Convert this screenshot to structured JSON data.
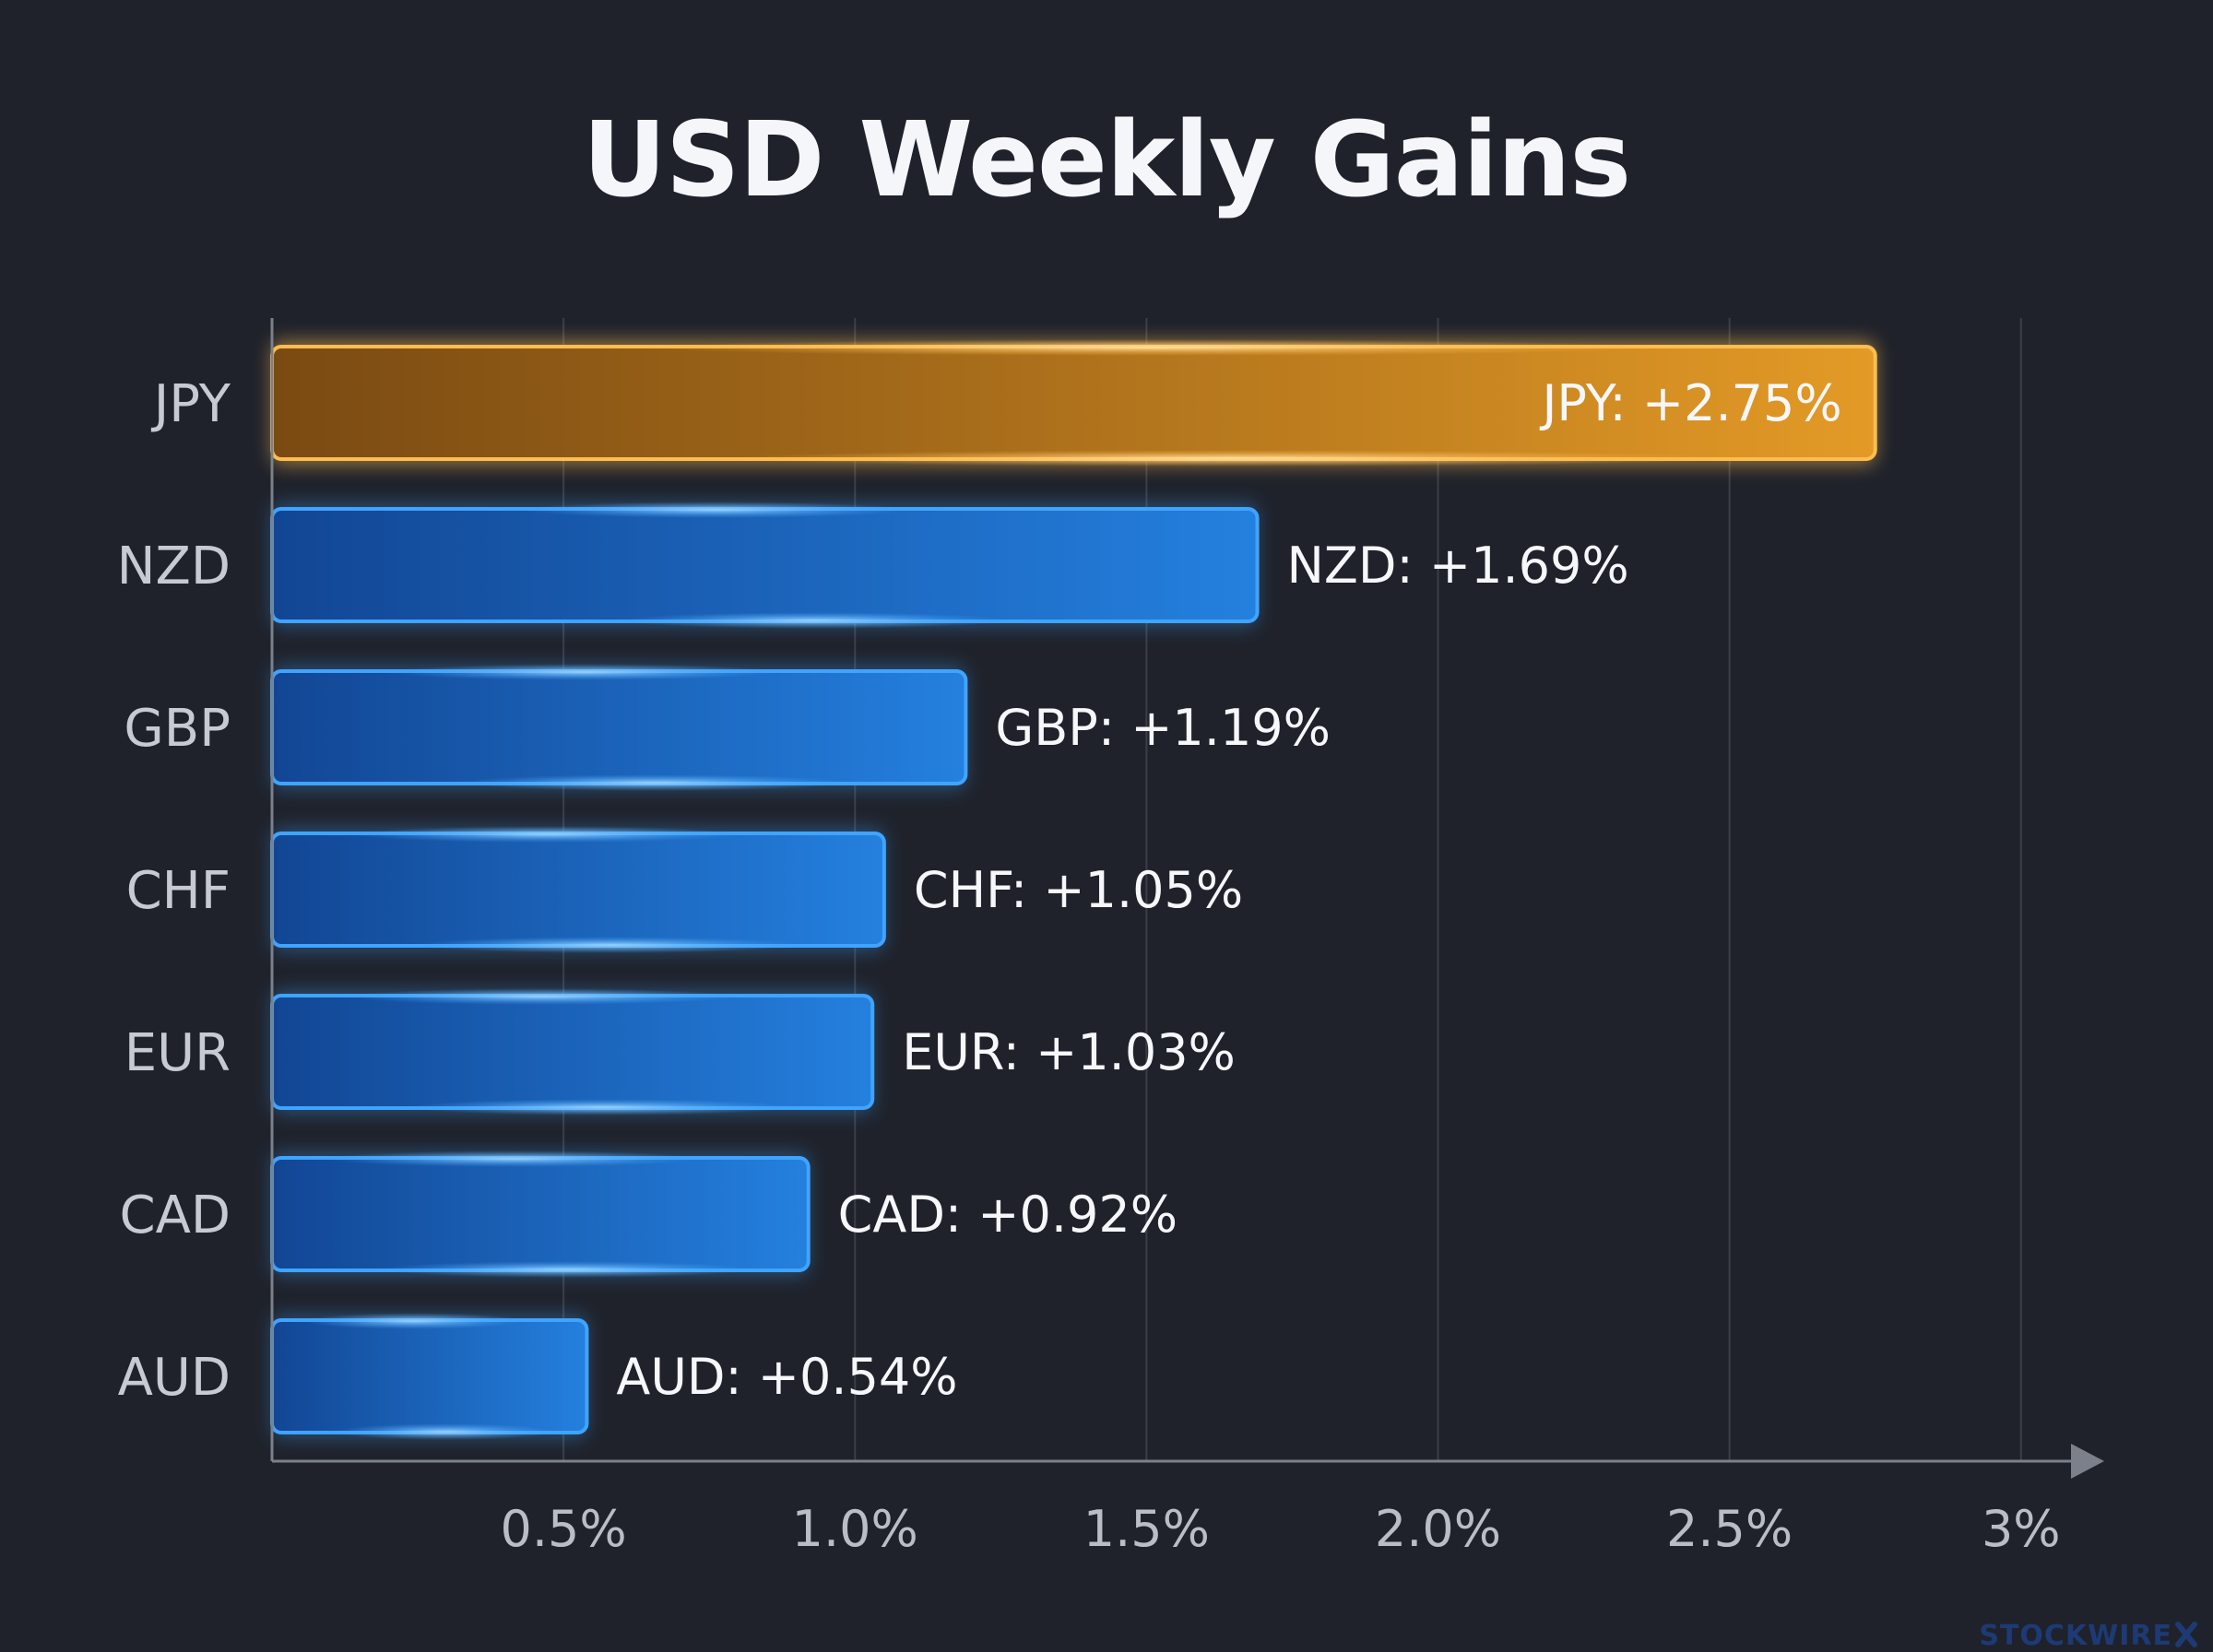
{
  "chart_data": {
    "type": "bar",
    "orientation": "horizontal",
    "title": "USD Weekly Gains",
    "categories": [
      "JPY",
      "NZD",
      "GBP",
      "CHF",
      "EUR",
      "CAD",
      "AUD"
    ],
    "values": [
      2.75,
      1.69,
      1.19,
      1.05,
      1.03,
      0.92,
      0.54
    ],
    "data_labels": [
      "JPY: +2.75%",
      "NZD: +1.69%",
      "GBP: +1.19%",
      "CHF: +1.05%",
      "EUR: +1.03%",
      "CAD: +0.92%",
      "AUD: +0.54%"
    ],
    "x_ticks": [
      0.5,
      1.0,
      1.5,
      2.0,
      2.5,
      3.0
    ],
    "x_tick_labels": [
      "0.5%",
      "1.0%",
      "1.5%",
      "2.0%",
      "2.5%",
      "3%"
    ],
    "xlim": [
      0,
      3.1
    ],
    "xlabel": "",
    "ylabel": "",
    "grid": "vertical",
    "highlight_category": "JPY",
    "colors": {
      "background": "#1f222b",
      "highlight": "#e8961f",
      "highlight_border": "#ffbd4f",
      "bar": "#1e6fd0",
      "bar_border": "#3fa4ff",
      "grid": "#3a3e49",
      "axis": "#7b808b"
    }
  },
  "watermark": {
    "text": "STOCKWIRE",
    "icon": "x-mark-icon"
  }
}
